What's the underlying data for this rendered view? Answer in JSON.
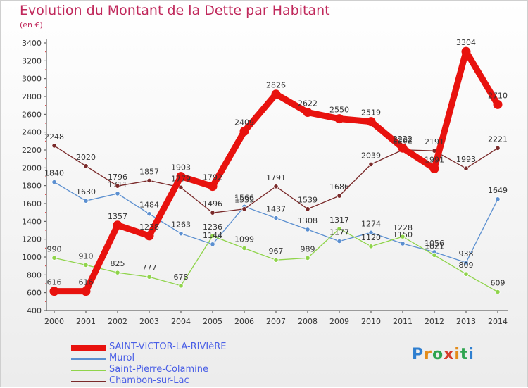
{
  "header": {
    "title": "Evolution du Montant de la Dette par Habitant",
    "unit": "(en €)"
  },
  "logo": {
    "text": "Proxiti"
  },
  "chart_data": {
    "type": "line",
    "categories": [
      "2000",
      "2001",
      "2002",
      "2003",
      "2004",
      "2005",
      "2006",
      "2007",
      "2008",
      "2009",
      "2010",
      "2011",
      "2012",
      "2013",
      "2014"
    ],
    "ylim": [
      400,
      3400
    ],
    "yticks": [
      400,
      600,
      800,
      1000,
      1200,
      1400,
      1600,
      1800,
      2000,
      2200,
      2400,
      2600,
      2800,
      3000,
      3200,
      3400
    ],
    "grid": false,
    "legend_position": "bottom",
    "series": [
      {
        "name": "SAINT-VICTOR-LA-RIVIèRE",
        "color": "#e8120e",
        "width": 9,
        "values": [
          616,
          616,
          1357,
          1238,
          1903,
          1792,
          2409,
          2826,
          2622,
          2550,
          2519,
          2222,
          1991,
          3304,
          2710
        ],
        "labels": [
          "616",
          "616",
          "1357",
          "1238",
          "1903",
          "1792",
          "2409",
          "2826",
          "2622",
          "2550",
          "2519",
          "2222",
          "1991",
          "3304",
          "2710"
        ]
      },
      {
        "name": "Murol",
        "color": "#5b8fd0",
        "width": 1.3,
        "values": [
          1840,
          1630,
          1711,
          1484,
          1263,
          1144,
          1566,
          1437,
          1308,
          1177,
          1274,
          1150,
          1056,
          938,
          1649
        ],
        "labels": [
          "1840",
          "1630",
          "1711",
          "1484",
          "1263",
          "1144",
          "1566",
          "1437",
          "1308",
          "1177",
          "1274",
          "1150",
          "1056",
          "938",
          "1649"
        ]
      },
      {
        "name": "Saint-Pierre-Colamine",
        "color": "#8fd44a",
        "width": 1.3,
        "values": [
          990,
          910,
          825,
          777,
          678,
          1236,
          1099,
          967,
          989,
          1317,
          1120,
          1228,
          1021,
          809,
          609
        ],
        "labels": [
          "990",
          "910",
          "825",
          "777",
          "678",
          "1236",
          "1099",
          "967",
          "989",
          "1317",
          "1120",
          "1228",
          "1021",
          "809",
          "609"
        ]
      },
      {
        "name": "Chambon-sur-Lac",
        "color": "#7a2a2a",
        "width": 1.3,
        "values": [
          2248,
          2020,
          1796,
          1857,
          1779,
          1496,
          1539,
          1791,
          1539,
          1686,
          2039,
          2202,
          2191,
          1993,
          2221
        ],
        "labels": [
          "2248",
          "2020",
          "1796",
          "1857",
          "1779",
          "1496",
          "1539",
          "1791",
          "1539",
          "1686",
          "2039",
          "2202",
          "2191",
          "1993",
          "2221"
        ]
      }
    ]
  }
}
